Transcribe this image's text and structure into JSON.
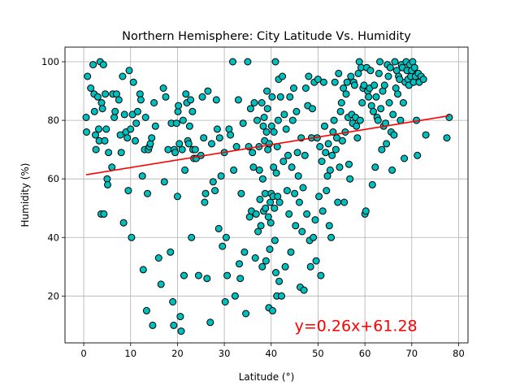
{
  "chart_data": {
    "type": "scatter",
    "title": "Northern Hemisphere: City Latitude Vs. Humidity",
    "xlabel": "Latitude (°)",
    "ylabel": "Humidity (%)",
    "xlim": [
      -4,
      82
    ],
    "ylim": [
      4,
      105
    ],
    "xticks": [
      0,
      10,
      20,
      30,
      40,
      50,
      60,
      70,
      80
    ],
    "yticks": [
      20,
      40,
      60,
      80,
      100
    ],
    "xtick_labels": [
      "0",
      "10",
      "20",
      "30",
      "40",
      "50",
      "60",
      "70",
      "80"
    ],
    "ytick_labels": [
      "20",
      "40",
      "60",
      "80",
      "100"
    ],
    "grid": true,
    "point_color": "#00bfbf",
    "line_color": "#ff0000",
    "regression": {
      "slope": 0.26,
      "intercept": 61.28,
      "x_range": [
        0.5,
        78
      ]
    },
    "annotation": {
      "text": "y=0.26x+61.28",
      "x": 45,
      "y": 10,
      "color": "#ff0000"
    },
    "points": [
      [
        0.5,
        81
      ],
      [
        0.6,
        76
      ],
      [
        0.8,
        95
      ],
      [
        1.5,
        91
      ],
      [
        2,
        99
      ],
      [
        2.2,
        89
      ],
      [
        2.3,
        83
      ],
      [
        2.5,
        75
      ],
      [
        2.6,
        70
      ],
      [
        3,
        88
      ],
      [
        3.2,
        77
      ],
      [
        3.3,
        73
      ],
      [
        3.5,
        100
      ],
      [
        3.7,
        48
      ],
      [
        3.8,
        86
      ],
      [
        4,
        84
      ],
      [
        4.2,
        99
      ],
      [
        4.3,
        48
      ],
      [
        4.5,
        73
      ],
      [
        4.6,
        89
      ],
      [
        4.8,
        77
      ],
      [
        5,
        60
      ],
      [
        5.1,
        58
      ],
      [
        5.3,
        69
      ],
      [
        6,
        64
      ],
      [
        6.2,
        89
      ],
      [
        6.5,
        81
      ],
      [
        6.7,
        83
      ],
      [
        7,
        89
      ],
      [
        7.5,
        87
      ],
      [
        7.8,
        75
      ],
      [
        8,
        69
      ],
      [
        8.3,
        95
      ],
      [
        8.5,
        45
      ],
      [
        8.7,
        82
      ],
      [
        9,
        76
      ],
      [
        9.3,
        74
      ],
      [
        9.5,
        56
      ],
      [
        9.7,
        97
      ],
      [
        10,
        77
      ],
      [
        10.2,
        40
      ],
      [
        10.4,
        82
      ],
      [
        10.6,
        93
      ],
      [
        11,
        73
      ],
      [
        11.2,
        79
      ],
      [
        11.5,
        83
      ],
      [
        12,
        89
      ],
      [
        12.2,
        87
      ],
      [
        12.5,
        61
      ],
      [
        12.7,
        29
      ],
      [
        13,
        70
      ],
      [
        13.2,
        81
      ],
      [
        13.4,
        15
      ],
      [
        13.6,
        55
      ],
      [
        13.8,
        70
      ],
      [
        14,
        71
      ],
      [
        14.2,
        72
      ],
      [
        14.5,
        74
      ],
      [
        14.7,
        10
      ],
      [
        15,
        86
      ],
      [
        15.3,
        78
      ],
      [
        16,
        33
      ],
      [
        16.5,
        24
      ],
      [
        17,
        91
      ],
      [
        17.2,
        59
      ],
      [
        17.5,
        88
      ],
      [
        18,
        70
      ],
      [
        18.5,
        35
      ],
      [
        18.7,
        79
      ],
      [
        19,
        18
      ],
      [
        19.2,
        10
      ],
      [
        19.3,
        70
      ],
      [
        19.5,
        69
      ],
      [
        19.8,
        79
      ],
      [
        20,
        54
      ],
      [
        20.1,
        83
      ],
      [
        20.2,
        85
      ],
      [
        20.4,
        72
      ],
      [
        20.6,
        13
      ],
      [
        20.8,
        8
      ],
      [
        21,
        70
      ],
      [
        21.2,
        80
      ],
      [
        21.4,
        27
      ],
      [
        21.6,
        63
      ],
      [
        21.8,
        89
      ],
      [
        22,
        86
      ],
      [
        22.2,
        73
      ],
      [
        22.4,
        72
      ],
      [
        22.6,
        78
      ],
      [
        22.8,
        87
      ],
      [
        23,
        40
      ],
      [
        23.2,
        83
      ],
      [
        23.3,
        70
      ],
      [
        23.5,
        67
      ],
      [
        23.8,
        70
      ],
      [
        24,
        67
      ],
      [
        24.5,
        27
      ],
      [
        25,
        68
      ],
      [
        25.3,
        88
      ],
      [
        25.6,
        74
      ],
      [
        25.8,
        52
      ],
      [
        26,
        55
      ],
      [
        26.3,
        26
      ],
      [
        26.5,
        90
      ],
      [
        27,
        11
      ],
      [
        27.3,
        72
      ],
      [
        27.6,
        59
      ],
      [
        28,
        56
      ],
      [
        28.3,
        87
      ],
      [
        28.5,
        77
      ],
      [
        28.8,
        43
      ],
      [
        29,
        74
      ],
      [
        29.3,
        61
      ],
      [
        29.6,
        37
      ],
      [
        30,
        69
      ],
      [
        30.2,
        18
      ],
      [
        30.4,
        40
      ],
      [
        30.6,
        27
      ],
      [
        31,
        77
      ],
      [
        31.3,
        75
      ],
      [
        31.8,
        100
      ],
      [
        32,
        63
      ],
      [
        32.3,
        20
      ],
      [
        32.6,
        71
      ],
      [
        33,
        87
      ],
      [
        33.2,
        31
      ],
      [
        33.4,
        26
      ],
      [
        33.6,
        55
      ],
      [
        34,
        79
      ],
      [
        34.3,
        35
      ],
      [
        34.6,
        14
      ],
      [
        35,
        100
      ],
      [
        35.2,
        71
      ],
      [
        35.4,
        47
      ],
      [
        35.6,
        84
      ],
      [
        35.8,
        49
      ],
      [
        36,
        69
      ],
      [
        36.2,
        64
      ],
      [
        36.4,
        86
      ],
      [
        36.6,
        33
      ],
      [
        36.8,
        48
      ],
      [
        37,
        80
      ],
      [
        37.2,
        42
      ],
      [
        37.4,
        71
      ],
      [
        37.5,
        63
      ],
      [
        37.6,
        53
      ],
      [
        37.8,
        44
      ],
      [
        38,
        86
      ],
      [
        38.1,
        30
      ],
      [
        38.2,
        60
      ],
      [
        38.3,
        78
      ],
      [
        38.4,
        49
      ],
      [
        38.5,
        81
      ],
      [
        38.6,
        73
      ],
      [
        38.7,
        55
      ],
      [
        38.8,
        50
      ],
      [
        38.9,
        32
      ],
      [
        39,
        76
      ],
      [
        39.1,
        90
      ],
      [
        39.2,
        84
      ],
      [
        39.3,
        70
      ],
      [
        39.4,
        47
      ],
      [
        39.5,
        16
      ],
      [
        39.6,
        72
      ],
      [
        39.7,
        36
      ],
      [
        39.8,
        52
      ],
      [
        39.9,
        45
      ],
      [
        40,
        55
      ],
      [
        40.1,
        78
      ],
      [
        40.2,
        88
      ],
      [
        40.3,
        15
      ],
      [
        40.4,
        54
      ],
      [
        40.5,
        64
      ],
      [
        40.6,
        76
      ],
      [
        40.7,
        50
      ],
      [
        40.8,
        39
      ],
      [
        40.9,
        100
      ],
      [
        41,
        28
      ],
      [
        41.1,
        62
      ],
      [
        41.2,
        20
      ],
      [
        41.3,
        71
      ],
      [
        41.4,
        54
      ],
      [
        41.5,
        80
      ],
      [
        41.6,
        94
      ],
      [
        41.7,
        25
      ],
      [
        41.8,
        52
      ],
      [
        42,
        88
      ],
      [
        42.2,
        20
      ],
      [
        42.4,
        95
      ],
      [
        42.6,
        66
      ],
      [
        42.8,
        82
      ],
      [
        43,
        30
      ],
      [
        43.2,
        77
      ],
      [
        43.4,
        56
      ],
      [
        43.6,
        68
      ],
      [
        43.8,
        48
      ],
      [
        44,
        88
      ],
      [
        44.2,
        35
      ],
      [
        44.4,
        64
      ],
      [
        44.6,
        80
      ],
      [
        44.8,
        91
      ],
      [
        45,
        55
      ],
      [
        45.2,
        44
      ],
      [
        45.4,
        83
      ],
      [
        45.6,
        69
      ],
      [
        45.8,
        61
      ],
      [
        46,
        52
      ],
      [
        46.2,
        23
      ],
      [
        46.4,
        74
      ],
      [
        46.6,
        42
      ],
      [
        46.8,
        57
      ],
      [
        47,
        22
      ],
      [
        47.2,
        68
      ],
      [
        47.4,
        91
      ],
      [
        47.6,
        48
      ],
      [
        47.8,
        85
      ],
      [
        48,
        95
      ],
      [
        48.2,
        39
      ],
      [
        48.4,
        30
      ],
      [
        48.6,
        74
      ],
      [
        48.8,
        84
      ],
      [
        49,
        40
      ],
      [
        49.2,
        93
      ],
      [
        49.4,
        46
      ],
      [
        49.6,
        32
      ],
      [
        49.8,
        74
      ],
      [
        50,
        94
      ],
      [
        50.2,
        54
      ],
      [
        50.4,
        71
      ],
      [
        50.6,
        27
      ],
      [
        50.8,
        66
      ],
      [
        51,
        49
      ],
      [
        51.2,
        93
      ],
      [
        51.4,
        78
      ],
      [
        51.6,
        69
      ],
      [
        51.8,
        56
      ],
      [
        52,
        61
      ],
      [
        52.2,
        72
      ],
      [
        52.4,
        44
      ],
      [
        52.6,
        63
      ],
      [
        52.8,
        40
      ],
      [
        53,
        68
      ],
      [
        53.2,
        76
      ],
      [
        53.4,
        80
      ],
      [
        53.6,
        93
      ],
      [
        53.8,
        70
      ],
      [
        54,
        74
      ],
      [
        54.2,
        52
      ],
      [
        54.4,
        96
      ],
      [
        54.6,
        64
      ],
      [
        54.8,
        83
      ],
      [
        55,
        86
      ],
      [
        55.2,
        73
      ],
      [
        55.4,
        91
      ],
      [
        55.6,
        52
      ],
      [
        55.8,
        76
      ],
      [
        56,
        89
      ],
      [
        56.2,
        93
      ],
      [
        56.4,
        81
      ],
      [
        56.6,
        65
      ],
      [
        56.8,
        60
      ],
      [
        57,
        95
      ],
      [
        57.2,
        82
      ],
      [
        57.4,
        79
      ],
      [
        57.6,
        93
      ],
      [
        57.8,
        92
      ],
      [
        58,
        81
      ],
      [
        58.2,
        78
      ],
      [
        58.4,
        74
      ],
      [
        58.6,
        96
      ],
      [
        58.8,
        100
      ],
      [
        59,
        80
      ],
      [
        59.2,
        98
      ],
      [
        59.4,
        86
      ],
      [
        59.6,
        91
      ],
      [
        59.8,
        92
      ],
      [
        60,
        48
      ],
      [
        60.2,
        49
      ],
      [
        60.4,
        98
      ],
      [
        60.6,
        90
      ],
      [
        60.8,
        88
      ],
      [
        61,
        91
      ],
      [
        61.2,
        97
      ],
      [
        61.4,
        85
      ],
      [
        61.6,
        58
      ],
      [
        61.8,
        83
      ],
      [
        62,
        92
      ],
      [
        62.2,
        64
      ],
      [
        62.4,
        88
      ],
      [
        62.6,
        81
      ],
      [
        62.8,
        80
      ],
      [
        63,
        96
      ],
      [
        63.2,
        100
      ],
      [
        63.4,
        84
      ],
      [
        63.6,
        70
      ],
      [
        63.8,
        90
      ],
      [
        64,
        78
      ],
      [
        64.2,
        92
      ],
      [
        64.4,
        79
      ],
      [
        64.6,
        72
      ],
      [
        64.8,
        99
      ],
      [
        65,
        95
      ],
      [
        65.2,
        86
      ],
      [
        65.4,
        98
      ],
      [
        65.6,
        76
      ],
      [
        65.8,
        63
      ],
      [
        66,
        82
      ],
      [
        66.2,
        75
      ],
      [
        66.4,
        100
      ],
      [
        66.6,
        91
      ],
      [
        66.8,
        97
      ],
      [
        67,
        89
      ],
      [
        67.2,
        95
      ],
      [
        67.4,
        94
      ],
      [
        67.6,
        80
      ],
      [
        67.8,
        99
      ],
      [
        68,
        98
      ],
      [
        68.2,
        86
      ],
      [
        68.4,
        67
      ],
      [
        68.6,
        93
      ],
      [
        68.8,
        100
      ],
      [
        69,
        97
      ],
      [
        69.2,
        94
      ],
      [
        69.4,
        92
      ],
      [
        69.6,
        99
      ],
      [
        69.8,
        95
      ],
      [
        70,
        97
      ],
      [
        70.2,
        100
      ],
      [
        70.4,
        93
      ],
      [
        70.6,
        98
      ],
      [
        70.8,
        95
      ],
      [
        71,
        80
      ],
      [
        71.2,
        68
      ],
      [
        71.4,
        96
      ],
      [
        71.6,
        93
      ],
      [
        72,
        95
      ],
      [
        72.5,
        94
      ],
      [
        73,
        75
      ],
      [
        77.5,
        74
      ],
      [
        78,
        81
      ]
    ]
  }
}
